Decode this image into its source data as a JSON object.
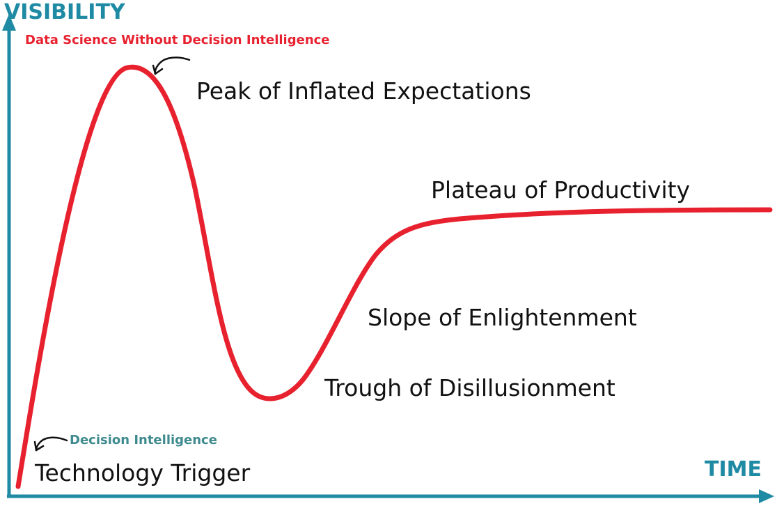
{
  "axes": {
    "y_title": "VISIBILITY",
    "x_title": "TIME",
    "color": "#1f8aa3"
  },
  "curve": {
    "color": "#e8212f"
  },
  "phases": {
    "technology_trigger": "Technology Trigger",
    "peak": "Peak of Inflated Expectations",
    "trough": "Trough of Disillusionment",
    "slope": "Slope of Enlightenment",
    "plateau": "Plateau of Productivity"
  },
  "annotations": {
    "peak_note": "Data Science Without Decision Intelligence",
    "peak_note_color": "#e8212f",
    "trigger_note": "Decision Intelligence",
    "trigger_note_color": "#3e8a8e"
  }
}
